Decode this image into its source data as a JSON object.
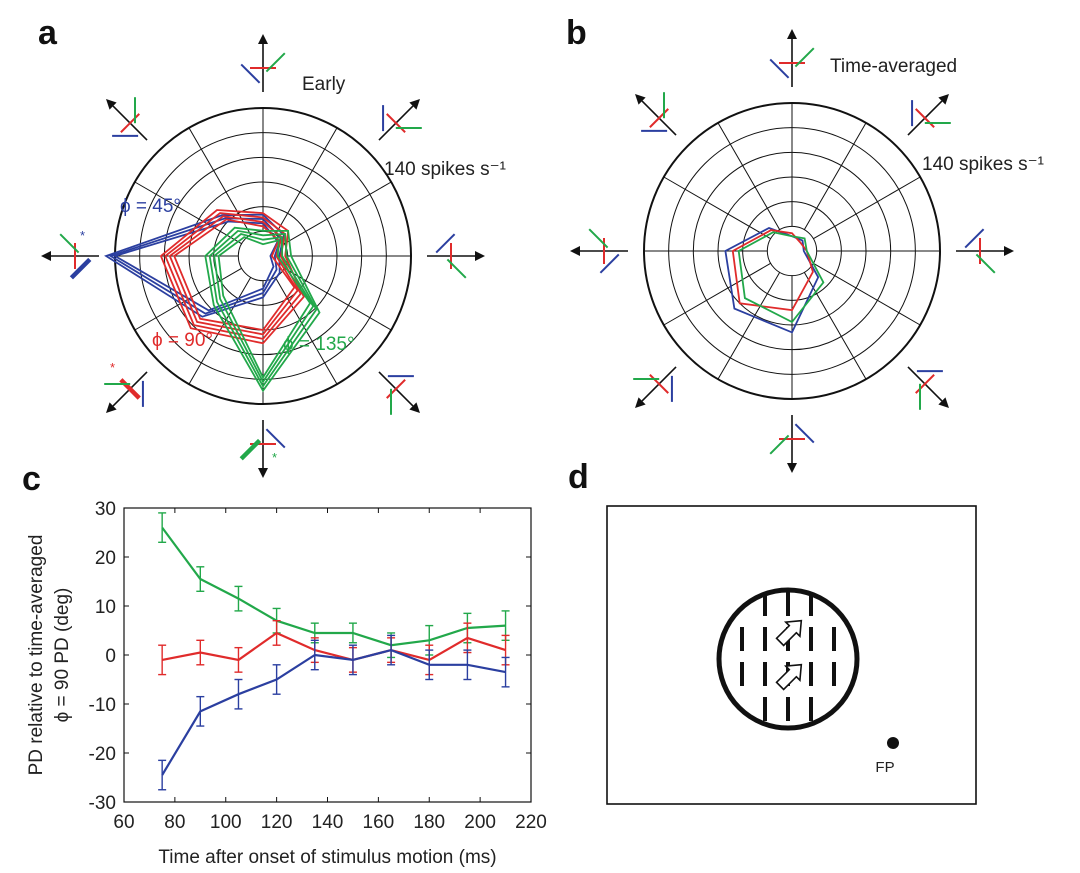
{
  "panels": {
    "a": {
      "letter": "a",
      "title": "Early",
      "scale_label": "140 spikes s⁻¹",
      "phi_labels": [
        "ϕ = 45°",
        "ϕ = 90°",
        "ϕ = 135°"
      ],
      "asterisk": "*"
    },
    "b": {
      "letter": "b",
      "title": "Time-averaged",
      "scale_label": "140 spikes s⁻¹"
    },
    "c": {
      "letter": "c"
    },
    "d": {
      "letter": "d",
      "fp_label": "FP"
    }
  },
  "colors": {
    "blue": "#2b3fa0",
    "red": "#e02b2b",
    "green": "#22a84a",
    "axis": "#111111"
  },
  "chart_data": {
    "type": "line",
    "xlabel": "Time after onset of stimulus motion (ms)",
    "ylabel_line1": "PD relative to time-averaged",
    "ylabel_line2": "ϕ = 90 PD (deg)",
    "xlim": [
      60,
      220
    ],
    "ylim": [
      -30,
      30
    ],
    "xticks": [
      60,
      80,
      100,
      120,
      140,
      160,
      180,
      200,
      220
    ],
    "yticks": [
      30,
      20,
      10,
      0,
      -10,
      -20,
      -30
    ],
    "x": [
      75,
      90,
      105,
      120,
      135,
      150,
      165,
      180,
      195,
      210
    ],
    "series": [
      {
        "color": "#22a84a",
        "values": [
          26,
          15.5,
          11.5,
          7,
          4.5,
          4.5,
          2,
          3,
          5.5,
          6
        ],
        "err": [
          3,
          2.5,
          2.5,
          2.5,
          2,
          2,
          2.5,
          3,
          3,
          3
        ]
      },
      {
        "color": "#e02b2b",
        "values": [
          -1,
          0.5,
          -1,
          4.5,
          1,
          -1,
          1,
          -1,
          3.5,
          1
        ],
        "err": [
          3,
          2.5,
          2.5,
          2.5,
          2.5,
          2.5,
          2.5,
          3,
          3,
          3
        ]
      },
      {
        "color": "#2b3fa0",
        "values": [
          -24.5,
          -11.5,
          -8,
          -5,
          0,
          -1,
          1,
          -2,
          -2,
          -3.5
        ],
        "err": [
          3,
          3,
          3,
          3,
          3,
          3,
          3,
          3,
          3,
          3
        ]
      }
    ]
  }
}
